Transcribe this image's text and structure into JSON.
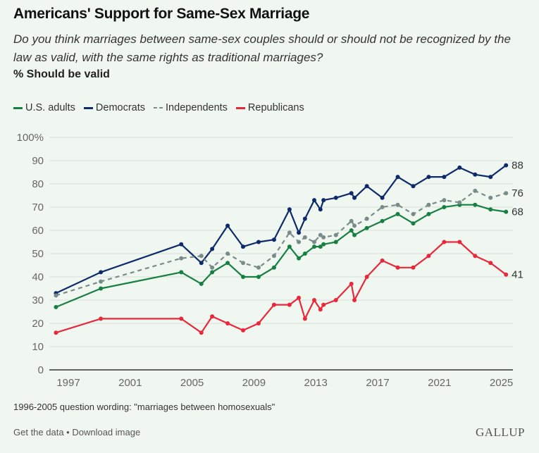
{
  "header": {
    "title": "Americans' Support for Same-Sex Marriage",
    "subtitle": "Do you think marriages between same-sex couples should or should not be recognized by the law as valid, with the same rights as traditional marriages?",
    "unit": "% Should be valid"
  },
  "footer": {
    "note": "1996-2005 question wording: \"marriages between homosexuals\"",
    "get_data": "Get the data",
    "separator": " • ",
    "download": "Download image",
    "logo": "GALLUP"
  },
  "chart_data": {
    "type": "line",
    "title": "Americans' Support for Same-Sex Marriage",
    "ylabel": "% Should be valid",
    "xlabel": "",
    "ylim": [
      0,
      100
    ],
    "xlim": [
      1995.5,
      2025.7
    ],
    "yticks": [
      0,
      10,
      20,
      30,
      40,
      50,
      60,
      70,
      80,
      90,
      100
    ],
    "ytick_labels": [
      "0",
      "10",
      "20",
      "30",
      "40",
      "50",
      "60",
      "70",
      "80",
      "90",
      "100%"
    ],
    "xticks": [
      1997,
      2001,
      2005,
      2009,
      2013,
      2017,
      2021,
      2025
    ],
    "xtick_labels": [
      "1997",
      "2001",
      "2005",
      "2009",
      "2013",
      "2017",
      "2021",
      "2025"
    ],
    "grid": true,
    "legend_position": "top-left",
    "x": [
      1996.2,
      1999.1,
      2004.3,
      2005.6,
      2006.3,
      2007.3,
      2008.3,
      2009.3,
      2010.3,
      2011.3,
      2011.9,
      2012.3,
      2012.9,
      2013.3,
      2013.5,
      2014.3,
      2015.3,
      2015.5,
      2016.3,
      2017.3,
      2018.3,
      2019.3,
      2020.3,
      2021.3,
      2022.3,
      2023.3,
      2024.3,
      2025.3
    ],
    "series": [
      {
        "name": "U.S. adults",
        "color": "#168043",
        "dashed": false,
        "end_label": "68",
        "values": [
          27,
          35,
          42,
          37,
          42,
          46,
          40,
          40,
          44,
          53,
          48,
          50,
          53,
          53,
          54,
          55,
          60,
          58,
          61,
          64,
          67,
          63,
          67,
          70,
          71,
          71,
          69,
          68
        ]
      },
      {
        "name": "Democrats",
        "color": "#0e2a6b",
        "dashed": false,
        "end_label": "88",
        "values": [
          33,
          42,
          54,
          46,
          52,
          62,
          53,
          55,
          56,
          69,
          59,
          65,
          73,
          69,
          73,
          74,
          76,
          74,
          79,
          74,
          83,
          79,
          83,
          83,
          87,
          84,
          83,
          88
        ]
      },
      {
        "name": "Independents",
        "color": "#7a8c8a",
        "dashed": true,
        "end_label": "76",
        "values": [
          32,
          38,
          48,
          49,
          44,
          50,
          46,
          44,
          49,
          59,
          55,
          57,
          55,
          58,
          57,
          58,
          64,
          62,
          65,
          70,
          71,
          67,
          71,
          73,
          72,
          77,
          74,
          76
        ]
      },
      {
        "name": "Republicans",
        "color": "#e8283b",
        "dashed": false,
        "end_label": "41",
        "values": [
          16,
          22,
          22,
          16,
          23,
          20,
          17,
          20,
          28,
          28,
          31,
          22,
          30,
          26,
          28,
          30,
          37,
          30,
          40,
          47,
          44,
          44,
          49,
          55,
          55,
          49,
          46,
          41
        ]
      }
    ]
  }
}
